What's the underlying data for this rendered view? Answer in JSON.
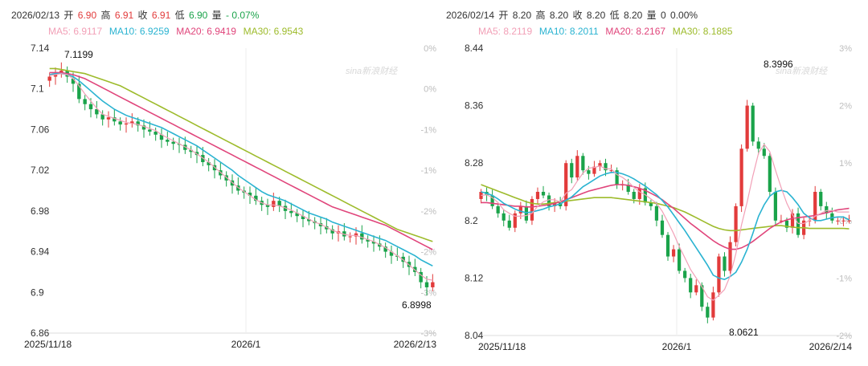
{
  "left": {
    "header": {
      "date": "2026/02/13",
      "open_label": "开",
      "open": "6.90",
      "high_label": "高",
      "high": "6.91",
      "close_label": "收",
      "close": "6.91",
      "low_label": "低",
      "low": "6.90",
      "vol_label": "量",
      "change": "- 0.07%"
    },
    "ma": {
      "ma5": "MA5: 6.9117",
      "ma10": "MA10: 6.9259",
      "ma20": "MA20: 6.9419",
      "ma30": "MA30: 6.9543"
    },
    "watermark": "sina新浪财经",
    "chart_data": {
      "type": "candlestick",
      "y_ticks": [
        "7.14",
        "7.1",
        "7.06",
        "7.02",
        "6.98",
        "6.94",
        "6.9",
        "6.86"
      ],
      "y_tick_values": [
        7.14,
        7.1,
        7.06,
        7.02,
        6.98,
        6.94,
        6.9,
        6.86
      ],
      "pct_ticks": [
        "0%",
        "0%",
        "-1%",
        "-1%",
        "-2%",
        "-2%",
        "-3%",
        "-3%"
      ],
      "x_labels": [
        "2025/11/18",
        "2026/1",
        "2026/2/13"
      ],
      "ylim": [
        6.86,
        7.14
      ],
      "high_label": "7.1199",
      "low_label": "6.8998",
      "ma_colors": {
        "ma5": "#f2a0b7",
        "ma10": "#2ab3d1",
        "ma20": "#e0457b",
        "ma30": "#9dbb2b"
      },
      "up_color": "#e23b3b",
      "down_color": "#1aa34a",
      "closes": [
        7.112,
        7.115,
        7.118,
        7.112,
        7.105,
        7.09,
        7.085,
        7.08,
        7.075,
        7.07,
        7.072,
        7.068,
        7.065,
        7.066,
        7.068,
        7.064,
        7.06,
        7.058,
        7.055,
        7.05,
        7.048,
        7.046,
        7.045,
        7.04,
        7.038,
        7.035,
        7.028,
        7.025,
        7.02,
        7.015,
        7.01,
        7.005,
        7.0,
        6.998,
        6.995,
        6.99,
        6.986,
        6.984,
        6.99,
        6.985,
        6.98,
        6.978,
        6.975,
        6.972,
        6.97,
        6.968,
        6.965,
        6.962,
        6.958,
        6.96,
        6.955,
        6.955,
        6.958,
        6.952,
        6.95,
        6.948,
        6.945,
        6.94,
        6.936,
        6.935,
        6.93,
        6.925,
        6.92,
        6.91,
        6.905,
        6.91
      ],
      "opens": [
        7.108,
        7.112,
        7.115,
        7.118,
        7.11,
        7.105,
        7.09,
        7.085,
        7.08,
        7.075,
        7.07,
        7.072,
        7.068,
        7.065,
        7.066,
        7.068,
        7.064,
        7.06,
        7.058,
        7.055,
        7.05,
        7.048,
        7.046,
        7.045,
        7.04,
        7.038,
        7.035,
        7.028,
        7.025,
        7.02,
        7.015,
        7.01,
        7.005,
        7.0,
        6.998,
        6.995,
        6.99,
        6.986,
        6.984,
        6.99,
        6.985,
        6.98,
        6.978,
        6.975,
        6.972,
        6.97,
        6.968,
        6.965,
        6.962,
        6.958,
        6.96,
        6.955,
        6.955,
        6.958,
        6.952,
        6.95,
        6.948,
        6.945,
        6.94,
        6.936,
        6.935,
        6.93,
        6.925,
        6.92,
        6.91,
        6.905
      ],
      "ma5": [
        7.113,
        7.114,
        7.115,
        7.114,
        7.11,
        7.103,
        7.095,
        7.088,
        7.081,
        7.075,
        7.073,
        7.071,
        7.069,
        7.067,
        7.066,
        7.065,
        7.063,
        7.061,
        7.059,
        7.055,
        7.052,
        7.049,
        7.046,
        7.043,
        7.04,
        7.036,
        7.032,
        7.028,
        7.023,
        7.018,
        7.013,
        7.008,
        7.003,
        6.999,
        6.995,
        6.991,
        6.988,
        6.986,
        6.986,
        6.985,
        6.983,
        6.981,
        6.978,
        6.975,
        6.972,
        6.969,
        6.967,
        6.964,
        6.961,
        6.959,
        6.957,
        6.956,
        6.956,
        6.954,
        6.952,
        6.95,
        6.947,
        6.944,
        6.94,
        6.936,
        6.932,
        6.927,
        6.922,
        6.917,
        6.913,
        6.912
      ],
      "ma10": [
        7.114,
        7.115,
        7.115,
        7.114,
        7.112,
        7.108,
        7.103,
        7.098,
        7.093,
        7.088,
        7.084,
        7.08,
        7.077,
        7.074,
        7.072,
        7.07,
        7.068,
        7.066,
        7.064,
        7.062,
        7.059,
        7.056,
        7.053,
        7.05,
        7.047,
        7.044,
        7.04,
        7.036,
        7.032,
        7.028,
        7.024,
        7.02,
        7.015,
        7.011,
        7.007,
        7.003,
        6.999,
        6.996,
        6.994,
        6.992,
        6.99,
        6.987,
        6.984,
        6.981,
        6.978,
        6.976,
        6.974,
        6.972,
        6.969,
        6.967,
        6.965,
        6.963,
        6.961,
        6.959,
        6.957,
        6.955,
        6.953,
        6.951,
        6.948,
        6.945,
        6.942,
        6.939,
        6.936,
        6.932,
        6.929,
        6.926
      ],
      "ma20": [
        7.116,
        7.116,
        7.116,
        7.115,
        7.114,
        7.112,
        7.11,
        7.107,
        7.104,
        7.101,
        7.098,
        7.095,
        7.092,
        7.089,
        7.086,
        7.083,
        7.08,
        7.077,
        7.074,
        7.071,
        7.068,
        7.065,
        7.062,
        7.059,
        7.056,
        7.053,
        7.05,
        7.047,
        7.044,
        7.041,
        7.038,
        7.035,
        7.032,
        7.029,
        7.026,
        7.023,
        7.02,
        7.017,
        7.014,
        7.011,
        7.008,
        7.005,
        7.002,
        6.999,
        6.996,
        6.993,
        6.99,
        6.987,
        6.984,
        6.982,
        6.98,
        6.978,
        6.976,
        6.974,
        6.972,
        6.97,
        6.968,
        6.966,
        6.963,
        6.96,
        6.957,
        6.954,
        6.951,
        6.948,
        6.945,
        6.942
      ],
      "ma30": [
        7.12,
        7.12,
        7.119,
        7.118,
        7.117,
        7.116,
        7.115,
        7.113,
        7.111,
        7.109,
        7.107,
        7.105,
        7.103,
        7.1,
        7.097,
        7.094,
        7.091,
        7.088,
        7.085,
        7.082,
        7.079,
        7.076,
        7.073,
        7.07,
        7.067,
        7.064,
        7.061,
        7.058,
        7.055,
        7.052,
        7.049,
        7.046,
        7.043,
        7.04,
        7.037,
        7.034,
        7.031,
        7.028,
        7.025,
        7.022,
        7.019,
        7.016,
        7.013,
        7.01,
        7.007,
        7.004,
        7.001,
        6.998,
        6.995,
        6.992,
        6.989,
        6.986,
        6.983,
        6.98,
        6.977,
        6.974,
        6.971,
        6.968,
        6.965,
        6.962,
        6.96,
        6.958,
        6.956,
        6.954,
        6.952,
        6.95
      ]
    }
  },
  "right": {
    "header": {
      "date": "2026/02/14",
      "open_label": "开",
      "open": "8.20",
      "high_label": "高",
      "high": "8.20",
      "close_label": "收",
      "close": "8.20",
      "low_label": "低",
      "low": "8.20",
      "vol_label": "量",
      "vol": "0",
      "change": "0.00%"
    },
    "ma": {
      "ma5": "MA5: 8.2119",
      "ma10": "MA10: 8.2011",
      "ma20": "MA20: 8.2167",
      "ma30": "MA30: 8.1885"
    },
    "watermark": "sina新浪财经",
    "chart_data": {
      "type": "candlestick",
      "y_ticks": [
        "8.44",
        "8.36",
        "8.28",
        "8.2",
        "8.12",
        "8.04"
      ],
      "y_tick_values": [
        8.44,
        8.36,
        8.28,
        8.2,
        8.12,
        8.04
      ],
      "pct_ticks": [
        "3%",
        "2%",
        "1%",
        "0%",
        "-1%",
        "-2%"
      ],
      "x_labels": [
        "2025/11/18",
        "2026/1",
        "2026/2/14"
      ],
      "ylim": [
        8.04,
        8.44
      ],
      "high_label": "8.3996",
      "low_label": "8.0621",
      "ma_colors": {
        "ma5": "#f2a0b7",
        "ma10": "#2ab3d1",
        "ma20": "#e0457b",
        "ma30": "#9dbb2b"
      },
      "up_color": "#e23b3b",
      "down_color": "#1aa34a",
      "closes": [
        8.24,
        8.235,
        8.22,
        8.21,
        8.2,
        8.19,
        8.21,
        8.22,
        8.2,
        8.23,
        8.24,
        8.235,
        8.22,
        8.225,
        8.22,
        8.28,
        8.26,
        8.29,
        8.27,
        8.265,
        8.275,
        8.28,
        8.27,
        8.27,
        8.25,
        8.25,
        8.24,
        8.23,
        8.245,
        8.225,
        8.22,
        8.2,
        8.18,
        8.15,
        8.16,
        8.13,
        8.12,
        8.1,
        8.11,
        8.08,
        8.065,
        8.1,
        8.15,
        8.13,
        8.17,
        8.22,
        8.3,
        8.36,
        8.31,
        8.3,
        8.29,
        8.24,
        8.2,
        8.2,
        8.19,
        8.21,
        8.18,
        8.2,
        8.2,
        8.24,
        8.22,
        8.21,
        8.2,
        8.2,
        8.2,
        8.2
      ],
      "opens": [
        8.23,
        8.24,
        8.235,
        8.22,
        8.21,
        8.2,
        8.19,
        8.21,
        8.22,
        8.2,
        8.23,
        8.24,
        8.235,
        8.22,
        8.225,
        8.22,
        8.28,
        8.26,
        8.29,
        8.27,
        8.265,
        8.275,
        8.28,
        8.27,
        8.27,
        8.25,
        8.25,
        8.24,
        8.23,
        8.245,
        8.225,
        8.22,
        8.2,
        8.18,
        8.15,
        8.16,
        8.13,
        8.12,
        8.1,
        8.11,
        8.08,
        8.065,
        8.1,
        8.15,
        8.13,
        8.17,
        8.22,
        8.3,
        8.36,
        8.31,
        8.3,
        8.29,
        8.24,
        8.2,
        8.2,
        8.19,
        8.21,
        8.18,
        8.2,
        8.2,
        8.24,
        8.22,
        8.21,
        8.2,
        8.2,
        8.2
      ],
      "ma5": [
        8.235,
        8.236,
        8.232,
        8.225,
        8.215,
        8.21,
        8.206,
        8.206,
        8.207,
        8.21,
        8.22,
        8.226,
        8.229,
        8.229,
        8.226,
        8.238,
        8.243,
        8.255,
        8.266,
        8.273,
        8.274,
        8.276,
        8.272,
        8.272,
        8.264,
        8.26,
        8.254,
        8.246,
        8.24,
        8.236,
        8.23,
        8.224,
        8.213,
        8.198,
        8.182,
        8.164,
        8.148,
        8.132,
        8.12,
        8.108,
        8.094,
        8.089,
        8.096,
        8.104,
        8.123,
        8.154,
        8.194,
        8.226,
        8.262,
        8.294,
        8.306,
        8.296,
        8.27,
        8.246,
        8.224,
        8.208,
        8.196,
        8.196,
        8.2,
        8.206,
        8.21,
        8.214,
        8.214,
        8.212,
        8.212,
        8.212
      ],
      "ma10": [
        8.24,
        8.238,
        8.235,
        8.23,
        8.224,
        8.22,
        8.216,
        8.213,
        8.211,
        8.212,
        8.214,
        8.216,
        8.219,
        8.221,
        8.223,
        8.228,
        8.233,
        8.24,
        8.247,
        8.252,
        8.257,
        8.262,
        8.265,
        8.267,
        8.267,
        8.265,
        8.262,
        8.258,
        8.253,
        8.248,
        8.242,
        8.236,
        8.228,
        8.219,
        8.208,
        8.197,
        8.186,
        8.174,
        8.162,
        8.15,
        8.138,
        8.124,
        8.12,
        8.118,
        8.122,
        8.128,
        8.142,
        8.16,
        8.182,
        8.206,
        8.222,
        8.234,
        8.24,
        8.242,
        8.24,
        8.232,
        8.222,
        8.21,
        8.204,
        8.2,
        8.2,
        8.202,
        8.204,
        8.205,
        8.205,
        8.201
      ],
      "ma20": [
        8.225,
        8.225,
        8.224,
        8.223,
        8.222,
        8.221,
        8.22,
        8.22,
        8.219,
        8.219,
        8.22,
        8.221,
        8.222,
        8.224,
        8.226,
        8.229,
        8.232,
        8.235,
        8.238,
        8.241,
        8.243,
        8.245,
        8.247,
        8.249,
        8.25,
        8.25,
        8.249,
        8.247,
        8.245,
        8.242,
        8.238,
        8.234,
        8.229,
        8.223,
        8.217,
        8.21,
        8.203,
        8.196,
        8.19,
        8.184,
        8.178,
        8.172,
        8.167,
        8.163,
        8.16,
        8.16,
        8.162,
        8.166,
        8.171,
        8.177,
        8.183,
        8.189,
        8.194,
        8.198,
        8.201,
        8.203,
        8.204,
        8.205,
        8.206,
        8.207,
        8.209,
        8.211,
        8.213,
        8.215,
        8.216,
        8.217
      ],
      "ma30": [
        8.25,
        8.247,
        8.244,
        8.241,
        8.238,
        8.235,
        8.232,
        8.229,
        8.226,
        8.224,
        8.223,
        8.223,
        8.224,
        8.225,
        8.226,
        8.227,
        8.228,
        8.229,
        8.23,
        8.231,
        8.232,
        8.232,
        8.232,
        8.232,
        8.231,
        8.23,
        8.229,
        8.228,
        8.227,
        8.226,
        8.225,
        8.224,
        8.222,
        8.22,
        8.218,
        8.215,
        8.212,
        8.208,
        8.204,
        8.2,
        8.196,
        8.192,
        8.189,
        8.187,
        8.186,
        8.186,
        8.187,
        8.188,
        8.189,
        8.19,
        8.191,
        8.192,
        8.193,
        8.193,
        8.192,
        8.191,
        8.19,
        8.19,
        8.189,
        8.189,
        8.189,
        8.189,
        8.189,
        8.189,
        8.189,
        8.1885
      ]
    }
  }
}
